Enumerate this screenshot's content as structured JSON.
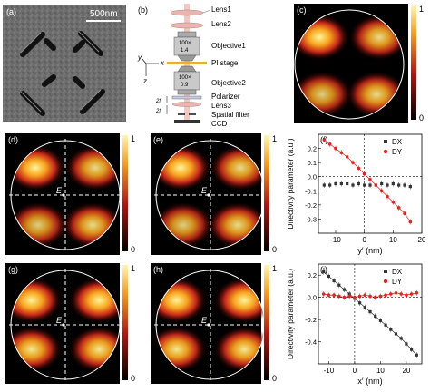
{
  "figure": {
    "panel_labels": [
      "(a)",
      "(b)",
      "(c)",
      "(d)",
      "(e)",
      "(f)",
      "(g)",
      "(h)",
      "(i)"
    ],
    "sem_scalebar": "500nm",
    "setup": {
      "lens1": "Lens1",
      "lens2": "Lens2",
      "objective1": "Objective1",
      "objective1_mag": "100×",
      "objective1_na": "1.4",
      "pi_stage": "PI  stage",
      "objective2": "Objective2",
      "objective2_mag": "100×",
      "objective2_na": "0.9",
      "polarizer": "Polarizer",
      "lens3": "Lens3",
      "spatial_filter": "Spatial filter",
      "ccd": "CCD",
      "axis_x": "x",
      "axis_y": "y",
      "axis_z": "z",
      "focal": "2f"
    },
    "colorbar": {
      "max": "1",
      "min": "0"
    },
    "field_label": "E",
    "colors": {
      "dx": "#333333",
      "dy": "#e8211a",
      "map_dark": "#000000",
      "map_hot": "#ffe46a"
    }
  },
  "chart_data": [
    {
      "type": "scatter",
      "panel": "(f)",
      "xlabel": "y′ (nm)",
      "ylabel": "Directivity parameter (a.u.)",
      "xlim": [
        -16,
        20
      ],
      "ylim": [
        -0.4,
        0.3
      ],
      "xticks": [
        -10,
        0,
        10,
        20
      ],
      "yticks": [
        -0.3,
        -0.2,
        -0.1,
        0.0,
        0.1,
        0.2
      ],
      "ytick_labels": [
        "-0.3",
        "-0.2",
        "-0.1",
        "0.0",
        "0.1",
        "0.2"
      ],
      "xtick_labels": [
        "-10",
        "0",
        "10",
        "20"
      ],
      "legend": [
        "DX",
        "DY"
      ],
      "legend_position": "top-right",
      "series": [
        {
          "name": "DX",
          "x": [
            -14,
            -12,
            -10,
            -8,
            -6,
            -4,
            -2,
            0,
            2,
            4,
            6,
            8,
            10,
            12,
            14,
            16
          ],
          "y": [
            -0.06,
            -0.06,
            -0.05,
            -0.05,
            -0.05,
            -0.06,
            -0.05,
            -0.06,
            -0.06,
            -0.06,
            -0.05,
            -0.06,
            -0.05,
            -0.06,
            -0.06,
            -0.07
          ]
        },
        {
          "name": "DY",
          "x": [
            -14,
            -12,
            -10,
            -8,
            -6,
            -4,
            -2,
            0,
            2,
            4,
            6,
            8,
            10,
            12,
            14,
            16
          ],
          "y": [
            0.26,
            0.23,
            0.2,
            0.17,
            0.14,
            0.1,
            0.06,
            0.02,
            -0.02,
            -0.06,
            -0.1,
            -0.14,
            -0.18,
            -0.22,
            -0.26,
            -0.32
          ]
        }
      ]
    },
    {
      "type": "scatter",
      "panel": "(i)",
      "xlabel": "x′ (nm)",
      "ylabel": "Directivity parameter (a.u.)",
      "xlim": [
        -14,
        26
      ],
      "ylim": [
        -0.6,
        0.3
      ],
      "xticks": [
        -10,
        0,
        10,
        20
      ],
      "yticks": [
        -0.4,
        -0.2,
        0.0,
        0.2
      ],
      "ytick_labels": [
        "-0.4",
        "-0.2",
        "0.0",
        "0.2"
      ],
      "xtick_labels": [
        "-10",
        "0",
        "10",
        "20"
      ],
      "legend": [
        "DX",
        "DY"
      ],
      "legend_position": "top-right",
      "series": [
        {
          "name": "DX",
          "x": [
            -12,
            -10,
            -8,
            -6,
            -4,
            -2,
            0,
            2,
            4,
            6,
            8,
            10,
            12,
            14,
            16,
            18,
            20,
            22,
            24
          ],
          "y": [
            0.23,
            0.19,
            0.15,
            0.11,
            0.07,
            0.03,
            -0.01,
            -0.05,
            -0.09,
            -0.13,
            -0.17,
            -0.21,
            -0.25,
            -0.29,
            -0.33,
            -0.37,
            -0.42,
            -0.47,
            -0.52
          ]
        },
        {
          "name": "DY",
          "x": [
            -12,
            -10,
            -8,
            -6,
            -4,
            -2,
            0,
            2,
            4,
            6,
            8,
            10,
            12,
            14,
            16,
            18,
            20,
            22,
            24
          ],
          "y": [
            0.03,
            0.02,
            0.02,
            0.01,
            0.0,
            0.01,
            0.0,
            0.01,
            0.02,
            0.01,
            0.0,
            0.01,
            0.02,
            0.03,
            0.04,
            0.03,
            0.02,
            0.03,
            0.04
          ]
        }
      ]
    }
  ]
}
